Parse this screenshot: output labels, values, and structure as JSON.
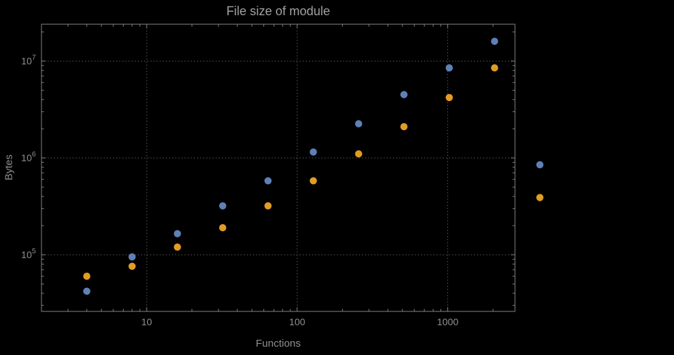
{
  "colors": {
    "background": "#000000",
    "frame": "#848484",
    "grid": "#5c5c5c",
    "text": "#8f8f8f",
    "title": "#a2a2a2",
    "series_blue": "#5e81b5",
    "series_orange": "#e19c24"
  },
  "chart_data": {
    "type": "scatter",
    "title": "File size of module",
    "xlabel": "Functions",
    "ylabel": "Bytes",
    "x_scale": "log",
    "y_scale": "log",
    "xlim": [
      2,
      2800
    ],
    "ylim": [
      26000,
      24000000
    ],
    "grid": "dotted gridlines at decade ticks, framed plot with inward ticks",
    "legend": "none",
    "x_ticks": [
      {
        "value": 10,
        "label": "10"
      },
      {
        "value": 100,
        "label": "100"
      },
      {
        "value": 1000,
        "label": "1000"
      }
    ],
    "y_ticks": [
      {
        "value": 100000,
        "base": "10",
        "exp": "5"
      },
      {
        "value": 1000000,
        "base": "10",
        "exp": "6"
      },
      {
        "value": 10000000,
        "base": "10",
        "exp": "7"
      }
    ],
    "x": [
      4,
      8,
      16,
      32,
      64,
      128,
      256,
      512,
      1024,
      2048,
      4096
    ],
    "series": [
      {
        "name": "blue",
        "color": "#5e81b5",
        "values": [
          42000,
          95000,
          165000,
          320000,
          580000,
          1150000,
          2250000,
          4500000,
          8500000,
          16000000,
          850000
        ]
      },
      {
        "name": "orange",
        "color": "#e19c24",
        "values": [
          60000,
          76000,
          120000,
          190000,
          320000,
          580000,
          1100000,
          2100000,
          4200000,
          8500000,
          390000
        ]
      }
    ]
  }
}
